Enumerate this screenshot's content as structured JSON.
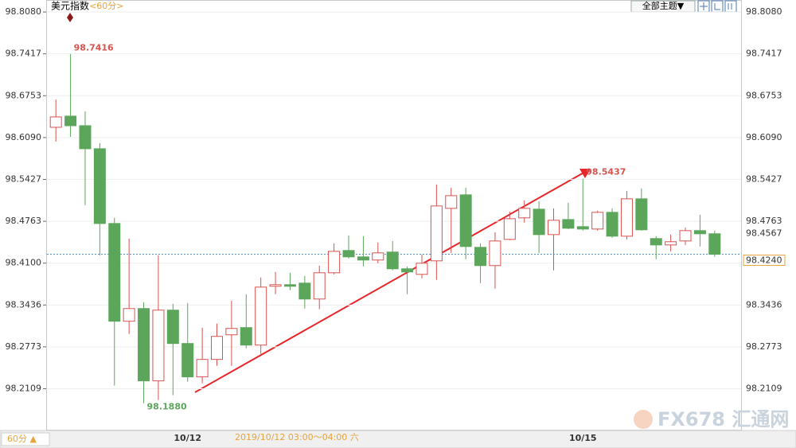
{
  "chart_data": {
    "type": "candlestick",
    "title": "美元指数",
    "subtitle": "<60分>",
    "theme_button": "全部主题▼",
    "period_button": "60分 ▲",
    "crosshair_time": "2019/10/12 03:00～04:00 六",
    "watermark": "FX678 汇通网",
    "categories": [
      null,
      null,
      null,
      null,
      null,
      null,
      null,
      null,
      null,
      "10/12",
      null,
      null,
      null,
      null,
      null,
      null,
      null,
      null,
      null,
      null,
      null,
      null,
      null,
      null,
      null,
      null,
      null,
      null,
      null,
      null,
      null,
      null,
      null,
      null,
      null,
      null,
      "10/15",
      null,
      null,
      null,
      null,
      null,
      null,
      null,
      null,
      null
    ],
    "series": [
      {
        "name": "美元指数",
        "up_color": "#d9534f",
        "down_color": "#5ca65c",
        "open": [
          98.6253,
          98.6429,
          98.6278,
          98.5913,
          98.4728,
          98.3179,
          98.338,
          98.2234,
          98.3355,
          98.2826,
          98.2297,
          98.2574,
          98.2964,
          98.3078,
          98.2801,
          98.3733,
          98.3758,
          98.3783,
          98.3531,
          98.3947,
          98.43,
          98.4199,
          98.4149,
          98.4275,
          98.401,
          98.3922,
          98.4136,
          98.4968,
          98.5182,
          98.435,
          98.4061,
          98.4476,
          98.4817,
          98.4955,
          98.4552,
          98.4791,
          98.4678,
          98.464,
          98.4905,
          98.4527,
          98.5119,
          98.4489,
          98.4388,
          98.4451,
          98.4615,
          98.4565
        ],
        "high": [
          98.6694,
          98.7416,
          98.6505,
          98.6001,
          98.4817,
          98.4489,
          98.3481,
          98.4224,
          98.3456,
          98.3468,
          98.3078,
          98.3141,
          98.3506,
          98.3607,
          98.3872,
          98.396,
          98.3947,
          98.3897,
          98.4061,
          98.4413,
          98.4539,
          98.4527,
          98.4426,
          98.4451,
          98.4048,
          98.4237,
          98.5346,
          98.5295,
          98.5295,
          98.4413,
          98.459,
          98.4917,
          98.5094,
          98.5081,
          98.4968,
          98.5056,
          98.5437,
          98.493,
          98.4968,
          98.5245,
          98.5283,
          98.4527,
          98.4552,
          98.4665,
          98.4867,
          98.4615
        ],
        "low": [
          98.6026,
          98.6102,
          98.5018,
          98.4224,
          98.2158,
          98.2977,
          98.188,
          98.1931,
          98.2007,
          98.2221,
          98.2196,
          98.2473,
          98.2473,
          98.275,
          98.2662,
          98.3607,
          98.367,
          98.338,
          98.3368,
          98.3922,
          98.4174,
          98.4048,
          98.4098,
          98.3985,
          98.3607,
          98.3859,
          98.3834,
          98.4262,
          98.4161,
          98.3783,
          98.3695,
          98.4463,
          98.4741,
          98.4262,
          98.3985,
          98.464,
          98.4615,
          98.4615,
          98.4502,
          98.4476,
          98.4615,
          98.4161,
          98.4287,
          98.4388,
          98.4363,
          98.4199
        ],
        "close": [
          98.6417,
          98.6278,
          98.5913,
          98.4728,
          98.3179,
          98.338,
          98.2234,
          98.3355,
          98.2826,
          98.2297,
          98.2574,
          98.2939,
          98.3065,
          98.2801,
          98.372,
          98.3758,
          98.3733,
          98.3531,
          98.3947,
          98.4287,
          98.4199,
          98.4149,
          98.4262,
          98.401,
          98.396,
          98.4098,
          98.5006,
          98.5169,
          98.4363,
          98.4061,
          98.4451,
          98.4804,
          98.4968,
          98.4552,
          98.4779,
          98.4653,
          98.464,
          98.4905,
          98.4527,
          98.5119,
          98.4628,
          98.4388,
          98.4439,
          98.4615,
          98.4565,
          98.424
        ]
      }
    ],
    "annotations": [
      {
        "text": "98.7416"
      },
      {
        "text": "98.1880"
      },
      {
        "text": "98.5437"
      }
    ],
    "last_price": {
      "value": 98.424,
      "label": "98.4240"
    },
    "marker_price": {
      "value": 98.4567,
      "label": "98.4567"
    },
    "ylim": [
      98.146,
      98.827
    ],
    "yticks": [
      {
        "value": 98.808,
        "label": "98.8080"
      },
      98.7417,
      98.6753,
      {
        "value": 98.609,
        "label": "98.6090"
      },
      98.5427,
      98.4763,
      {
        "value": 98.41,
        "label": "98.4100"
      },
      98.3436,
      98.2773,
      98.2109
    ],
    "grid": true
  }
}
